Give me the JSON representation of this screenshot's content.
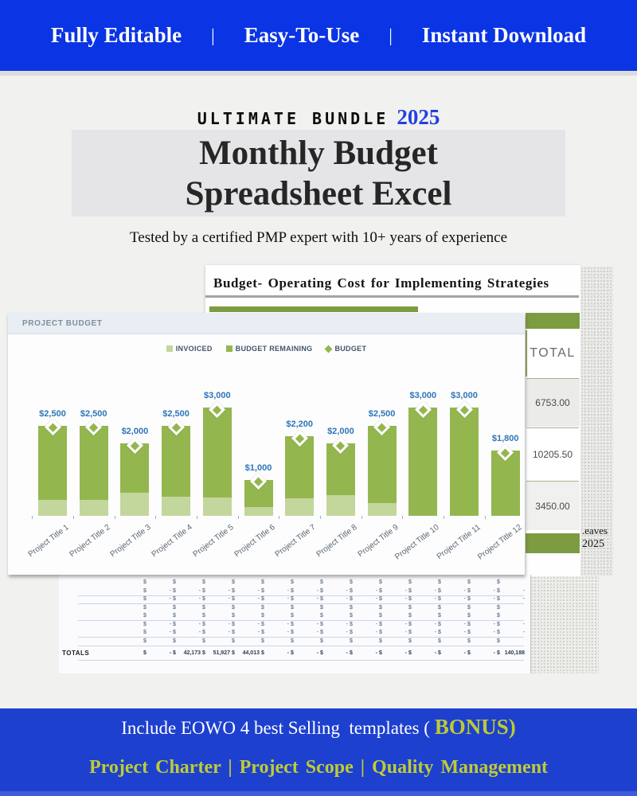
{
  "colors": {
    "top_banner_blue": "#0a34e4",
    "bottom_banner_blue": "#1d40cf",
    "accent_yellow_green": "#bcca33",
    "bar_green": "#94b64f",
    "bar_light_green": "#c3d69b",
    "olive_header_green": "#7d9b41",
    "data_label_blue": "#2e75b6",
    "year_blue": "#2240e0"
  },
  "banner_top": {
    "separator": "|",
    "items": [
      "Fully Editable",
      "Easy-To-Use",
      "Instant Download"
    ]
  },
  "hero": {
    "kicker": "ULTIMATE BUNDLE",
    "year": "2025",
    "title_line1": "Monthly Budget",
    "title_line2": "Spreadsheet Excel",
    "subtitle": "Tested by a certified PMP expert with 10+ years of experience"
  },
  "sheet": {
    "title": "Budget- Operating Cost for Implementing Strategies"
  },
  "side_note": {
    "line1": ".eaves",
    "line2": "2025"
  },
  "total_panel": {
    "header_label": "TOTAL",
    "rows": [
      {
        "value": "6753.00"
      },
      {
        "value": "10205.50"
      },
      {
        "value": "3450.00"
      }
    ]
  },
  "chart_panel": {
    "title": "PROJECT BUDGET"
  },
  "chart_data": {
    "type": "bar",
    "stacked": true,
    "title": "PROJECT BUDGET",
    "categories": [
      "Project Title 1",
      "Project Title 2",
      "Project Title 3",
      "Project Title 4",
      "Project Title 5",
      "Project Title 6",
      "Project Title 7",
      "Project Title 8",
      "Project Title 9",
      "Project Title 10",
      "Project Title 11",
      "Project Title 12"
    ],
    "series": [
      {
        "name": "INVOICED",
        "color": "#c3d69b",
        "values": [
          450,
          450,
          650,
          525,
          500,
          250,
          475,
          575,
          350,
          0,
          0,
          0
        ]
      },
      {
        "name": "BUDGET REMAINING",
        "color": "#94b64f",
        "values": [
          2050,
          2050,
          1350,
          1975,
          2500,
          750,
          1725,
          1425,
          2150,
          3000,
          3000,
          1800
        ]
      },
      {
        "name": "BUDGET",
        "marker": "diamond",
        "color": "#94b64f",
        "values": [
          2500,
          2500,
          2000,
          2500,
          3000,
          1000,
          2200,
          2000,
          2500,
          3000,
          3000,
          1800
        ]
      }
    ],
    "data_labels": [
      "$2,500",
      "$2,500",
      "$2,000",
      "$2,500",
      "$3,000",
      "$1,000",
      "$2,200",
      "$2,000",
      "$2,500",
      "$3,000",
      "$3,000",
      "$1,800"
    ],
    "ylim": [
      0,
      3000
    ],
    "grid": false,
    "legend_position": "top",
    "data_label_color": "#2e75b6",
    "axis_label_color": "#5a6672"
  },
  "bottom_table": {
    "totals_label": "TOTALS",
    "money_symbol": "$",
    "num_columns": 13,
    "row_patterns": [
      "plain",
      "dash",
      "dash",
      "plain",
      "plain",
      "dash",
      "dash",
      "plain"
    ],
    "totals": [
      "-",
      "42,173",
      "51,927",
      "44,013",
      "-",
      "-",
      "-",
      "-",
      "-",
      "-",
      "-",
      "-",
      "140,188"
    ]
  },
  "banner_bottom": {
    "line1_prefix": "Include EOWO 4 best Selling  templates ( ",
    "line1_accent": "BONUS)",
    "line2": "Project Charter | Project Scope | Quality Management"
  }
}
